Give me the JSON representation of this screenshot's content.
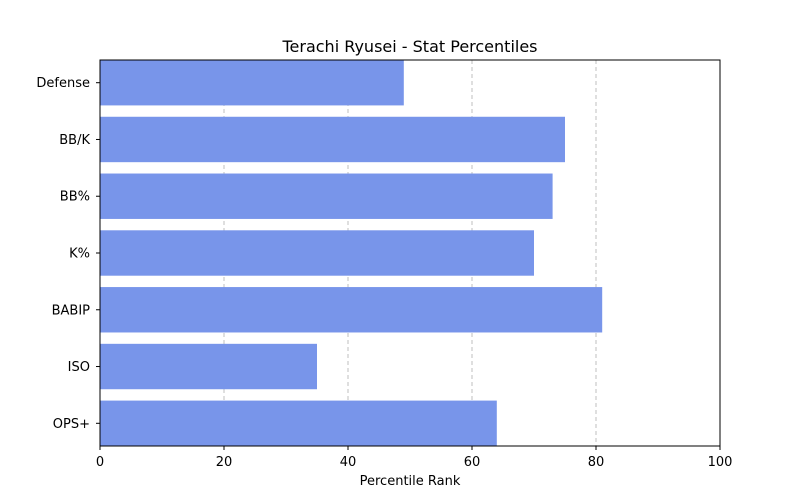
{
  "chart_data": {
    "type": "bar",
    "orientation": "horizontal",
    "title": "Terachi Ryusei - Stat Percentiles",
    "xlabel": "Percentile Rank",
    "ylabel": "",
    "categories": [
      "Defense",
      "BB/K",
      "BB%",
      "K%",
      "BABIP",
      "ISO",
      "OPS+"
    ],
    "values": [
      49,
      75,
      73,
      70,
      81,
      35,
      64
    ],
    "xlim": [
      0,
      100
    ],
    "xticks": [
      0,
      20,
      40,
      60,
      80,
      100
    ],
    "grid": "x-dashed",
    "bar_color": "#7895ea"
  }
}
